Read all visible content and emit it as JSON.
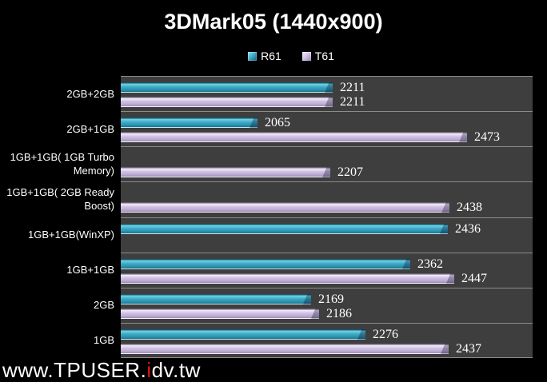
{
  "title": "3DMark05 (1440x900)",
  "watermark": {
    "prefix": "www.TPUSER.",
    "highlight": "i",
    "suffix": "dv.tw"
  },
  "colors": {
    "background": "#000000",
    "plot_background": "#3e3e3e",
    "separator": "#8b8b8b",
    "text": "#ffffff",
    "r61": "#2e95b2",
    "t61": "#c9b8dc",
    "watermark_red": "#ee1111"
  },
  "chart_data": {
    "type": "bar",
    "orientation": "horizontal",
    "title": "3DMark05 (1440x900)",
    "legend_position": "top",
    "grid": false,
    "axis": {
      "min": 1800,
      "max": 2600,
      "labels_visible": false
    },
    "categories": [
      "2GB+2GB",
      "2GB+1GB",
      "1GB+1GB( 1GB Turbo Memory)",
      "1GB+1GB( 2GB Ready Boost)",
      "1GB+1GB(WinXP)",
      "1GB+1GB",
      "2GB",
      "1GB"
    ],
    "series": [
      {
        "name": "R61",
        "color": "#2e95b2",
        "values": [
          2211,
          2065,
          null,
          null,
          2436,
          2362,
          2169,
          2276
        ]
      },
      {
        "name": "T61",
        "color": "#c9b8dc",
        "values": [
          2211,
          2473,
          2207,
          2438,
          null,
          2447,
          2186,
          2437
        ]
      }
    ]
  }
}
